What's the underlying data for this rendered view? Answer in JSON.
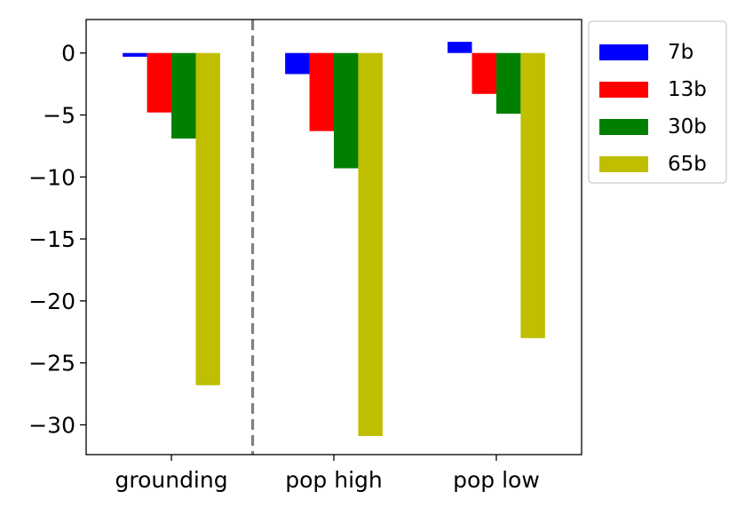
{
  "chart_data": {
    "type": "bar",
    "title": "",
    "xlabel": "",
    "ylabel": "",
    "categories": [
      "grounding",
      "pop high",
      "pop low"
    ],
    "series": [
      {
        "name": "7b",
        "color": "#0000ff",
        "values": [
          -0.3,
          -1.7,
          0.9
        ]
      },
      {
        "name": "13b",
        "color": "#ff0000",
        "values": [
          -4.8,
          -6.3,
          -3.3
        ]
      },
      {
        "name": "30b",
        "color": "#008000",
        "values": [
          -6.9,
          -9.3,
          -4.9
        ]
      },
      {
        "name": "65b",
        "color": "#bfbf00",
        "values": [
          -26.8,
          -30.9,
          -23.0
        ]
      }
    ],
    "ylim": [
      -32.4,
      2.7
    ],
    "yticks": [
      0,
      -5,
      -10,
      -15,
      -20,
      -25,
      -30
    ],
    "ytick_labels": [
      "0",
      "−5",
      "−10",
      "−15",
      "−20",
      "−25",
      "−30"
    ],
    "separator": {
      "after_category": 0,
      "style": "dashed",
      "color": "#808080"
    },
    "legend": {
      "placement": "outside-top-right"
    },
    "grid": false
  }
}
